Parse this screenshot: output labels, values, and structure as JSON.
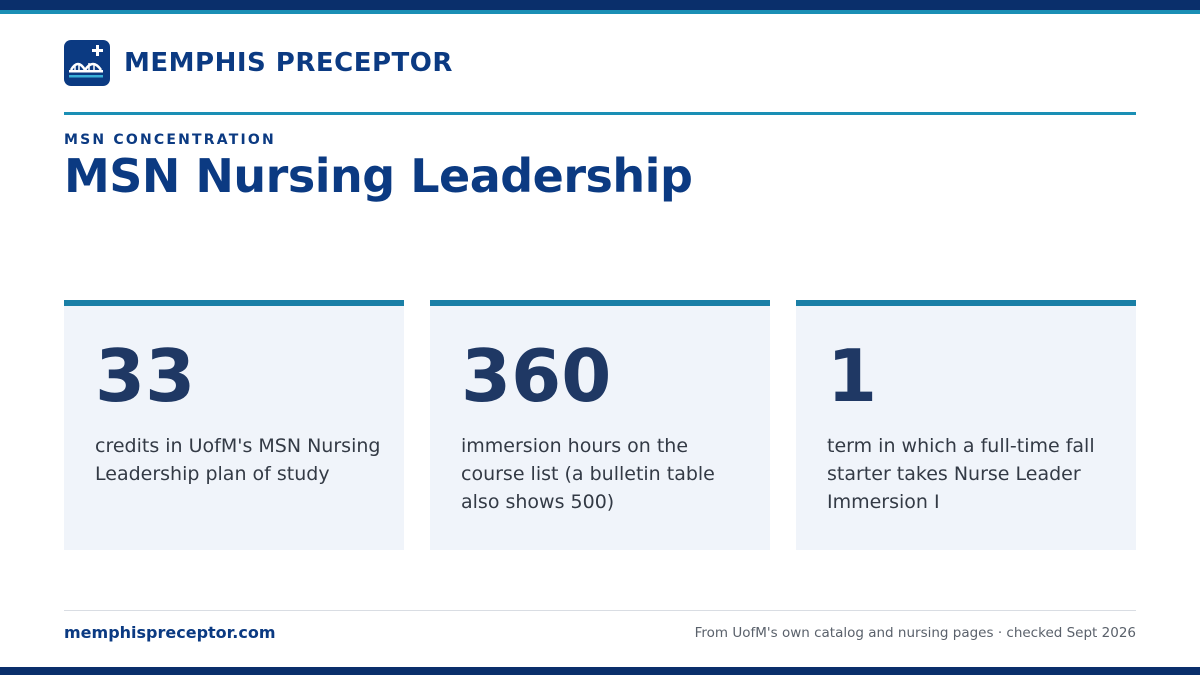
{
  "brand": {
    "logo_icon": "bridge-cross-icon",
    "name": "MEMPHIS PRECEPTOR"
  },
  "hero": {
    "eyebrow": "MSN CONCENTRATION",
    "title": "MSN Nursing Leadership"
  },
  "stats": [
    {
      "value": "33",
      "description": "credits in UofM's MSN Nursing Leadership plan of study"
    },
    {
      "value": "360",
      "description": "immersion hours on the course list (a bulletin table also shows 500)"
    },
    {
      "value": "1",
      "description": "term in which a full-time fall starter takes Nurse Leader Immersion I"
    }
  ],
  "footer": {
    "site": "memphispreceptor.com",
    "source": "From UofM's own catalog and nursing pages · checked Sept 2026"
  },
  "colors": {
    "navy": "#0b3a82",
    "dark_navy": "#0a2f6b",
    "teal_accent": "#1a8fb5",
    "card_bg": "#f0f4fa",
    "stat_number": "#1f3864"
  }
}
